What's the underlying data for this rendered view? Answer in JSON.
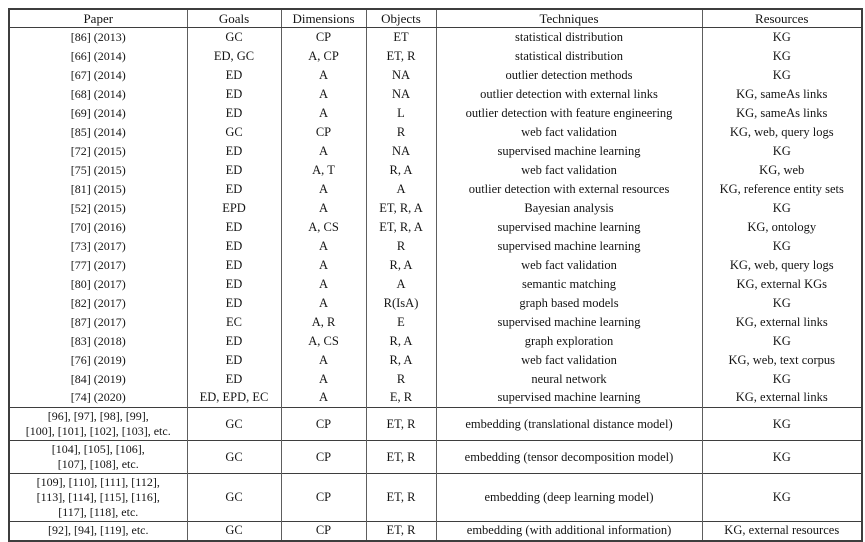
{
  "colors": {
    "background": "#ffffff",
    "border": "#3e3e3e",
    "inner_rule": "#5e5e5e",
    "text": "#141414"
  },
  "table": {
    "columns": [
      {
        "key": "paper",
        "label": "Paper"
      },
      {
        "key": "goals",
        "label": "Goals"
      },
      {
        "key": "dimensions",
        "label": "Dimensions"
      },
      {
        "key": "objects",
        "label": "Objects"
      },
      {
        "key": "techniques",
        "label": "Techniques"
      },
      {
        "key": "resources",
        "label": "Resources"
      }
    ],
    "rows": [
      {
        "paper": "[86] (2013)",
        "goals": "GC",
        "dimensions": "CP",
        "objects": "ET",
        "techniques": "statistical distribution",
        "resources": "KG"
      },
      {
        "paper": "[66] (2014)",
        "goals": "ED, GC",
        "dimensions": "A, CP",
        "objects": "ET, R",
        "techniques": "statistical distribution",
        "resources": "KG"
      },
      {
        "paper": "[67] (2014)",
        "goals": "ED",
        "dimensions": "A",
        "objects": "NA",
        "techniques": "outlier detection methods",
        "resources": "KG"
      },
      {
        "paper": "[68] (2014)",
        "goals": "ED",
        "dimensions": "A",
        "objects": "NA",
        "techniques": "outlier detection with external links",
        "resources": "KG, sameAs links"
      },
      {
        "paper": "[69] (2014)",
        "goals": "ED",
        "dimensions": "A",
        "objects": "L",
        "techniques": "outlier detection with feature engineering",
        "resources": "KG, sameAs links"
      },
      {
        "paper": "[85] (2014)",
        "goals": "GC",
        "dimensions": "CP",
        "objects": "R",
        "techniques": "web fact validation",
        "resources": "KG, web, query logs"
      },
      {
        "paper": "[72] (2015)",
        "goals": "ED",
        "dimensions": "A",
        "objects": "NA",
        "techniques": "supervised machine learning",
        "resources": "KG"
      },
      {
        "paper": "[75] (2015)",
        "goals": "ED",
        "dimensions": "A, T",
        "objects": "R, A",
        "techniques": "web fact validation",
        "resources": "KG, web"
      },
      {
        "paper": "[81] (2015)",
        "goals": "ED",
        "dimensions": "A",
        "objects": "A",
        "techniques": "outlier detection with external resources",
        "resources": "KG, reference entity sets"
      },
      {
        "paper": "[52] (2015)",
        "goals": "EPD",
        "dimensions": "A",
        "objects": "ET, R, A",
        "techniques": "Bayesian analysis",
        "resources": "KG"
      },
      {
        "paper": "[70] (2016)",
        "goals": "ED",
        "dimensions": "A, CS",
        "objects": "ET, R, A",
        "techniques": "supervised machine learning",
        "resources": "KG, ontology"
      },
      {
        "paper": "[73] (2017)",
        "goals": "ED",
        "dimensions": "A",
        "objects": "R",
        "techniques": "supervised machine learning",
        "resources": "KG"
      },
      {
        "paper": "[77] (2017)",
        "goals": "ED",
        "dimensions": "A",
        "objects": "R, A",
        "techniques": "web fact validation",
        "resources": "KG, web, query logs"
      },
      {
        "paper": "[80] (2017)",
        "goals": "ED",
        "dimensions": "A",
        "objects": "A",
        "techniques": "semantic matching",
        "resources": "KG, external KGs"
      },
      {
        "paper": "[82] (2017)",
        "goals": "ED",
        "dimensions": "A",
        "objects": "R(IsA)",
        "techniques": "graph based models",
        "resources": "KG"
      },
      {
        "paper": "[87] (2017)",
        "goals": "EC",
        "dimensions": "A, R",
        "objects": "E",
        "techniques": "supervised machine learning",
        "resources": "KG, external links"
      },
      {
        "paper": "[83] (2018)",
        "goals": "ED",
        "dimensions": "A, CS",
        "objects": "R, A",
        "techniques": "graph exploration",
        "resources": "KG"
      },
      {
        "paper": "[76] (2019)",
        "goals": "ED",
        "dimensions": "A",
        "objects": "R, A",
        "techniques": "web fact validation",
        "resources": "KG, web, text corpus"
      },
      {
        "paper": "[84] (2019)",
        "goals": "ED",
        "dimensions": "A",
        "objects": "R",
        "techniques": "neural network",
        "resources": "KG"
      },
      {
        "paper": "[74] (2020)",
        "goals": "ED, EPD, EC",
        "dimensions": "A",
        "objects": "E, R",
        "techniques": "supervised machine learning",
        "resources": "KG, external links"
      },
      {
        "group": true,
        "paper": "[96], [97], [98], [99],\n[100], [101], [102], [103], etc.",
        "goals": "GC",
        "dimensions": "CP",
        "objects": "ET, R",
        "techniques": "embedding (translational distance model)",
        "resources": "KG"
      },
      {
        "group": true,
        "paper": "[104], [105], [106],\n[107], [108], etc.",
        "goals": "GC",
        "dimensions": "CP",
        "objects": "ET, R",
        "techniques": "embedding (tensor decomposition model)",
        "resources": "KG"
      },
      {
        "group": true,
        "paper": "[109], [110], [111], [112],\n[113], [114], [115], [116],\n[117], [118], etc.",
        "goals": "GC",
        "dimensions": "CP",
        "objects": "ET, R",
        "techniques": "embedding (deep learning model)",
        "resources": "KG"
      },
      {
        "group": true,
        "paper": "[92], [94], [119], etc.",
        "goals": "GC",
        "dimensions": "CP",
        "objects": "ET, R",
        "techniques": "embedding (with additional information)",
        "resources": "KG, external resources"
      }
    ]
  }
}
